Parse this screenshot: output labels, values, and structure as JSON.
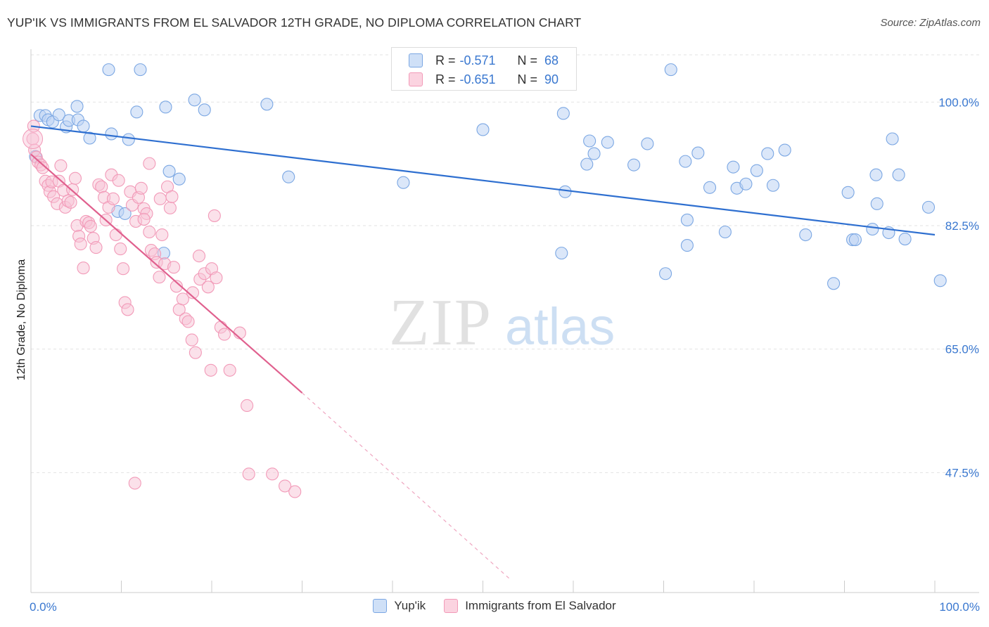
{
  "header": {
    "title": "YUP'IK VS IMMIGRANTS FROM EL SALVADOR 12TH GRADE, NO DIPLOMA CORRELATION CHART",
    "source": "Source: ZipAtlas.com"
  },
  "watermark": {
    "zip": "ZIP",
    "atlas": "atlas"
  },
  "stats": {
    "rows": [
      {
        "r_label": "R =",
        "r_value": "-0.571",
        "n_label": "N =",
        "n_value": "68",
        "color": "#adc9f0"
      },
      {
        "r_label": "R =",
        "r_value": "-0.651",
        "n_label": "N =",
        "n_value": "90",
        "color": "#f7b8cd"
      }
    ]
  },
  "legend": {
    "items": [
      {
        "label": "Yup'ik",
        "color": "#adc9f0"
      },
      {
        "label": "Immigrants from El Salvador",
        "color": "#f7b8cd"
      }
    ]
  },
  "chart_data": {
    "type": "scatter",
    "ylabel": "12th Grade, No Diploma",
    "xlim": [
      0,
      100
    ],
    "ylim": [
      30.5,
      107.5
    ],
    "x_ticks": [
      "0.0%",
      "100.0%"
    ],
    "y_ticks": [
      {
        "value": 100.0,
        "label": "100.0%"
      },
      {
        "value": 82.5,
        "label": "82.5%"
      },
      {
        "value": 65.0,
        "label": "65.0%"
      },
      {
        "value": 47.5,
        "label": "47.5%"
      }
    ],
    "grid": true,
    "legend_position": "bottom",
    "series": [
      {
        "name": "Yup'ik",
        "color": "#7ba7e3",
        "line_color": "#2e6fd0",
        "trend": {
          "x": [
            0,
            100
          ],
          "y": [
            96.6,
            81.2
          ],
          "dashed_to": null
        },
        "points": [
          [
            0.5,
            92.3
          ],
          [
            1,
            98.1
          ],
          [
            1.6,
            98.1
          ],
          [
            1.9,
            97.5
          ],
          [
            2.4,
            97.2
          ],
          [
            3.1,
            98.2
          ],
          [
            3.9,
            96.5
          ],
          [
            4.2,
            97.4
          ],
          [
            5.1,
            99.4
          ],
          [
            5.2,
            97.5
          ],
          [
            5.8,
            96.6
          ],
          [
            6.5,
            94.9
          ],
          [
            8.6,
            104.6
          ],
          [
            8.9,
            95.5
          ],
          [
            9.6,
            84.5
          ],
          [
            10.4,
            84.2
          ],
          [
            10.8,
            94.7
          ],
          [
            11.7,
            98.6
          ],
          [
            12.1,
            104.6
          ],
          [
            14.9,
            99.3
          ],
          [
            14.7,
            78.6
          ],
          [
            15.3,
            90.2
          ],
          [
            16.4,
            89.1
          ],
          [
            18.1,
            100.3
          ],
          [
            19.2,
            98.9
          ],
          [
            26.1,
            99.7
          ],
          [
            28.5,
            89.4
          ],
          [
            41.2,
            88.6
          ],
          [
            49.9,
            104.6
          ],
          [
            50,
            96.1
          ],
          [
            58.7,
            78.6
          ],
          [
            58.9,
            98.4
          ],
          [
            59.1,
            87.3
          ],
          [
            61.5,
            91.2
          ],
          [
            61.8,
            94.5
          ],
          [
            62.3,
            92.7
          ],
          [
            63.8,
            94.3
          ],
          [
            66.7,
            91.1
          ],
          [
            68.2,
            94.1
          ],
          [
            70.2,
            75.7
          ],
          [
            70.8,
            104.6
          ],
          [
            72.4,
            91.6
          ],
          [
            72.6,
            83.3
          ],
          [
            72.6,
            79.7
          ],
          [
            73.8,
            92.8
          ],
          [
            75.1,
            87.9
          ],
          [
            76.8,
            81.6
          ],
          [
            77.7,
            90.8
          ],
          [
            78.1,
            87.8
          ],
          [
            79.1,
            88.4
          ],
          [
            80.3,
            90.3
          ],
          [
            81.5,
            92.7
          ],
          [
            82.1,
            88.2
          ],
          [
            83.4,
            93.2
          ],
          [
            85.7,
            81.2
          ],
          [
            88.8,
            74.3
          ],
          [
            90.4,
            87.2
          ],
          [
            90.9,
            80.5
          ],
          [
            91.2,
            80.5
          ],
          [
            93.1,
            82.0
          ],
          [
            93.5,
            89.7
          ],
          [
            93.6,
            85.6
          ],
          [
            94.9,
            81.5
          ],
          [
            95.3,
            94.8
          ],
          [
            96.0,
            89.7
          ],
          [
            96.7,
            80.6
          ],
          [
            99.3,
            85.1
          ],
          [
            100.6,
            74.7
          ]
        ]
      },
      {
        "name": "Immigrants from El Salvador",
        "color": "#f29ab8",
        "line_color": "#e0608e",
        "trend": {
          "x": [
            0,
            30
          ],
          "y": [
            92.6,
            58.8
          ],
          "dashed_to": [
            53,
            32.4
          ]
        },
        "points": [
          [
            0.2,
            94.8
          ],
          [
            0.3,
            96.6
          ],
          [
            0.4,
            93.2
          ],
          [
            0.6,
            92.2
          ],
          [
            0.8,
            91.5
          ],
          [
            1.1,
            91.1
          ],
          [
            1.3,
            90.7
          ],
          [
            1.6,
            88.8
          ],
          [
            1.9,
            88.2
          ],
          [
            2.1,
            87.3
          ],
          [
            2.3,
            88.7
          ],
          [
            2.5,
            86.6
          ],
          [
            2.9,
            85.6
          ],
          [
            3.1,
            88.8
          ],
          [
            3.3,
            91.0
          ],
          [
            3.6,
            87.5
          ],
          [
            3.8,
            85.1
          ],
          [
            4.1,
            86.0
          ],
          [
            4.4,
            85.8
          ],
          [
            4.6,
            87.6
          ],
          [
            4.9,
            89.2
          ],
          [
            5.1,
            82.5
          ],
          [
            5.3,
            81.0
          ],
          [
            5.5,
            79.9
          ],
          [
            5.8,
            76.5
          ],
          [
            6.1,
            83.1
          ],
          [
            6.4,
            82.9
          ],
          [
            6.6,
            82.4
          ],
          [
            6.9,
            80.7
          ],
          [
            7.2,
            79.4
          ],
          [
            7.5,
            88.3
          ],
          [
            7.8,
            88.0
          ],
          [
            8.1,
            86.5
          ],
          [
            8.3,
            83.3
          ],
          [
            8.6,
            85.1
          ],
          [
            8.9,
            89.7
          ],
          [
            9.1,
            86.3
          ],
          [
            9.4,
            81.2
          ],
          [
            9.7,
            88.9
          ],
          [
            9.9,
            79.2
          ],
          [
            10.2,
            76.4
          ],
          [
            10.4,
            71.6
          ],
          [
            10.7,
            70.6
          ],
          [
            11.0,
            87.3
          ],
          [
            11.2,
            85.4
          ],
          [
            11.6,
            83.1
          ],
          [
            11.9,
            86.5
          ],
          [
            12.2,
            87.8
          ],
          [
            12.5,
            84.9
          ],
          [
            12.8,
            84.2
          ],
          [
            13.1,
            81.6
          ],
          [
            13.3,
            79.0
          ],
          [
            13.7,
            78.5
          ],
          [
            13.9,
            77.3
          ],
          [
            14.2,
            75.2
          ],
          [
            14.5,
            81.2
          ],
          [
            14.8,
            77.1
          ],
          [
            15.1,
            88.0
          ],
          [
            15.4,
            85.0
          ],
          [
            15.8,
            76.6
          ],
          [
            16.1,
            73.9
          ],
          [
            16.4,
            70.6
          ],
          [
            16.8,
            72.1
          ],
          [
            17.1,
            69.3
          ],
          [
            17.4,
            68.9
          ],
          [
            17.8,
            66.3
          ],
          [
            18.2,
            64.5
          ],
          [
            18.7,
            74.9
          ],
          [
            19.2,
            75.7
          ],
          [
            19.6,
            73.8
          ],
          [
            20.0,
            76.4
          ],
          [
            20.5,
            75.1
          ],
          [
            21.0,
            68.1
          ],
          [
            21.4,
            67.1
          ],
          [
            22.0,
            62.0
          ],
          [
            23.1,
            67.3
          ],
          [
            23.9,
            57.0
          ],
          [
            24.1,
            47.3
          ],
          [
            26.7,
            47.3
          ],
          [
            28.1,
            45.6
          ],
          [
            29.2,
            44.8
          ],
          [
            13.1,
            91.3
          ],
          [
            11.5,
            46.0
          ],
          [
            18.6,
            78.2
          ],
          [
            15.6,
            86.6
          ],
          [
            17.9,
            73.0
          ],
          [
            20.3,
            83.9
          ],
          [
            19.9,
            62.0
          ],
          [
            14.3,
            86.3
          ],
          [
            12.5,
            83.4
          ]
        ]
      }
    ]
  }
}
